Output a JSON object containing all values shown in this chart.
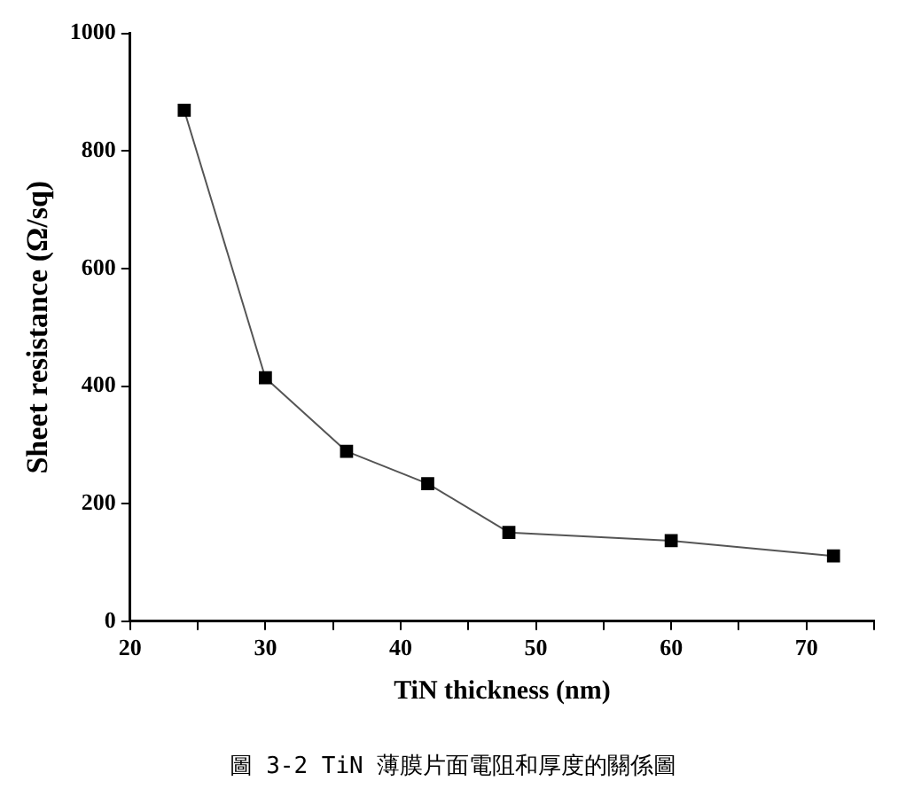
{
  "chart_data": {
    "type": "line",
    "xlabel": "TiN thickness (nm)",
    "ylabel": "Sheet resistance (Ω/sq)",
    "annotations": [
      "圖 3-2 TiN 薄膜片面電阻和厚度的關係圖"
    ],
    "x": [
      24,
      30,
      36,
      42,
      48,
      60,
      72
    ],
    "series": [
      {
        "color": "#000000",
        "values": [
          869,
          414,
          289,
          234,
          151,
          137,
          111
        ]
      }
    ],
    "xlim": [
      20,
      75
    ],
    "xticks": [
      20,
      {
        "value": 25,
        "label": null
      },
      30,
      {
        "value": 35,
        "label": null
      },
      40,
      {
        "value": 45,
        "label": null
      },
      50,
      {
        "value": 55,
        "label": null
      },
      60,
      {
        "value": 65,
        "label": null
      },
      70,
      {
        "value": 75,
        "label": null
      }
    ],
    "ylim": [
      0,
      1000
    ],
    "yticks": [
      0,
      200,
      400,
      600,
      800,
      1000
    ],
    "grid": false,
    "legend": false,
    "marker": "square",
    "line_style": "solid"
  }
}
